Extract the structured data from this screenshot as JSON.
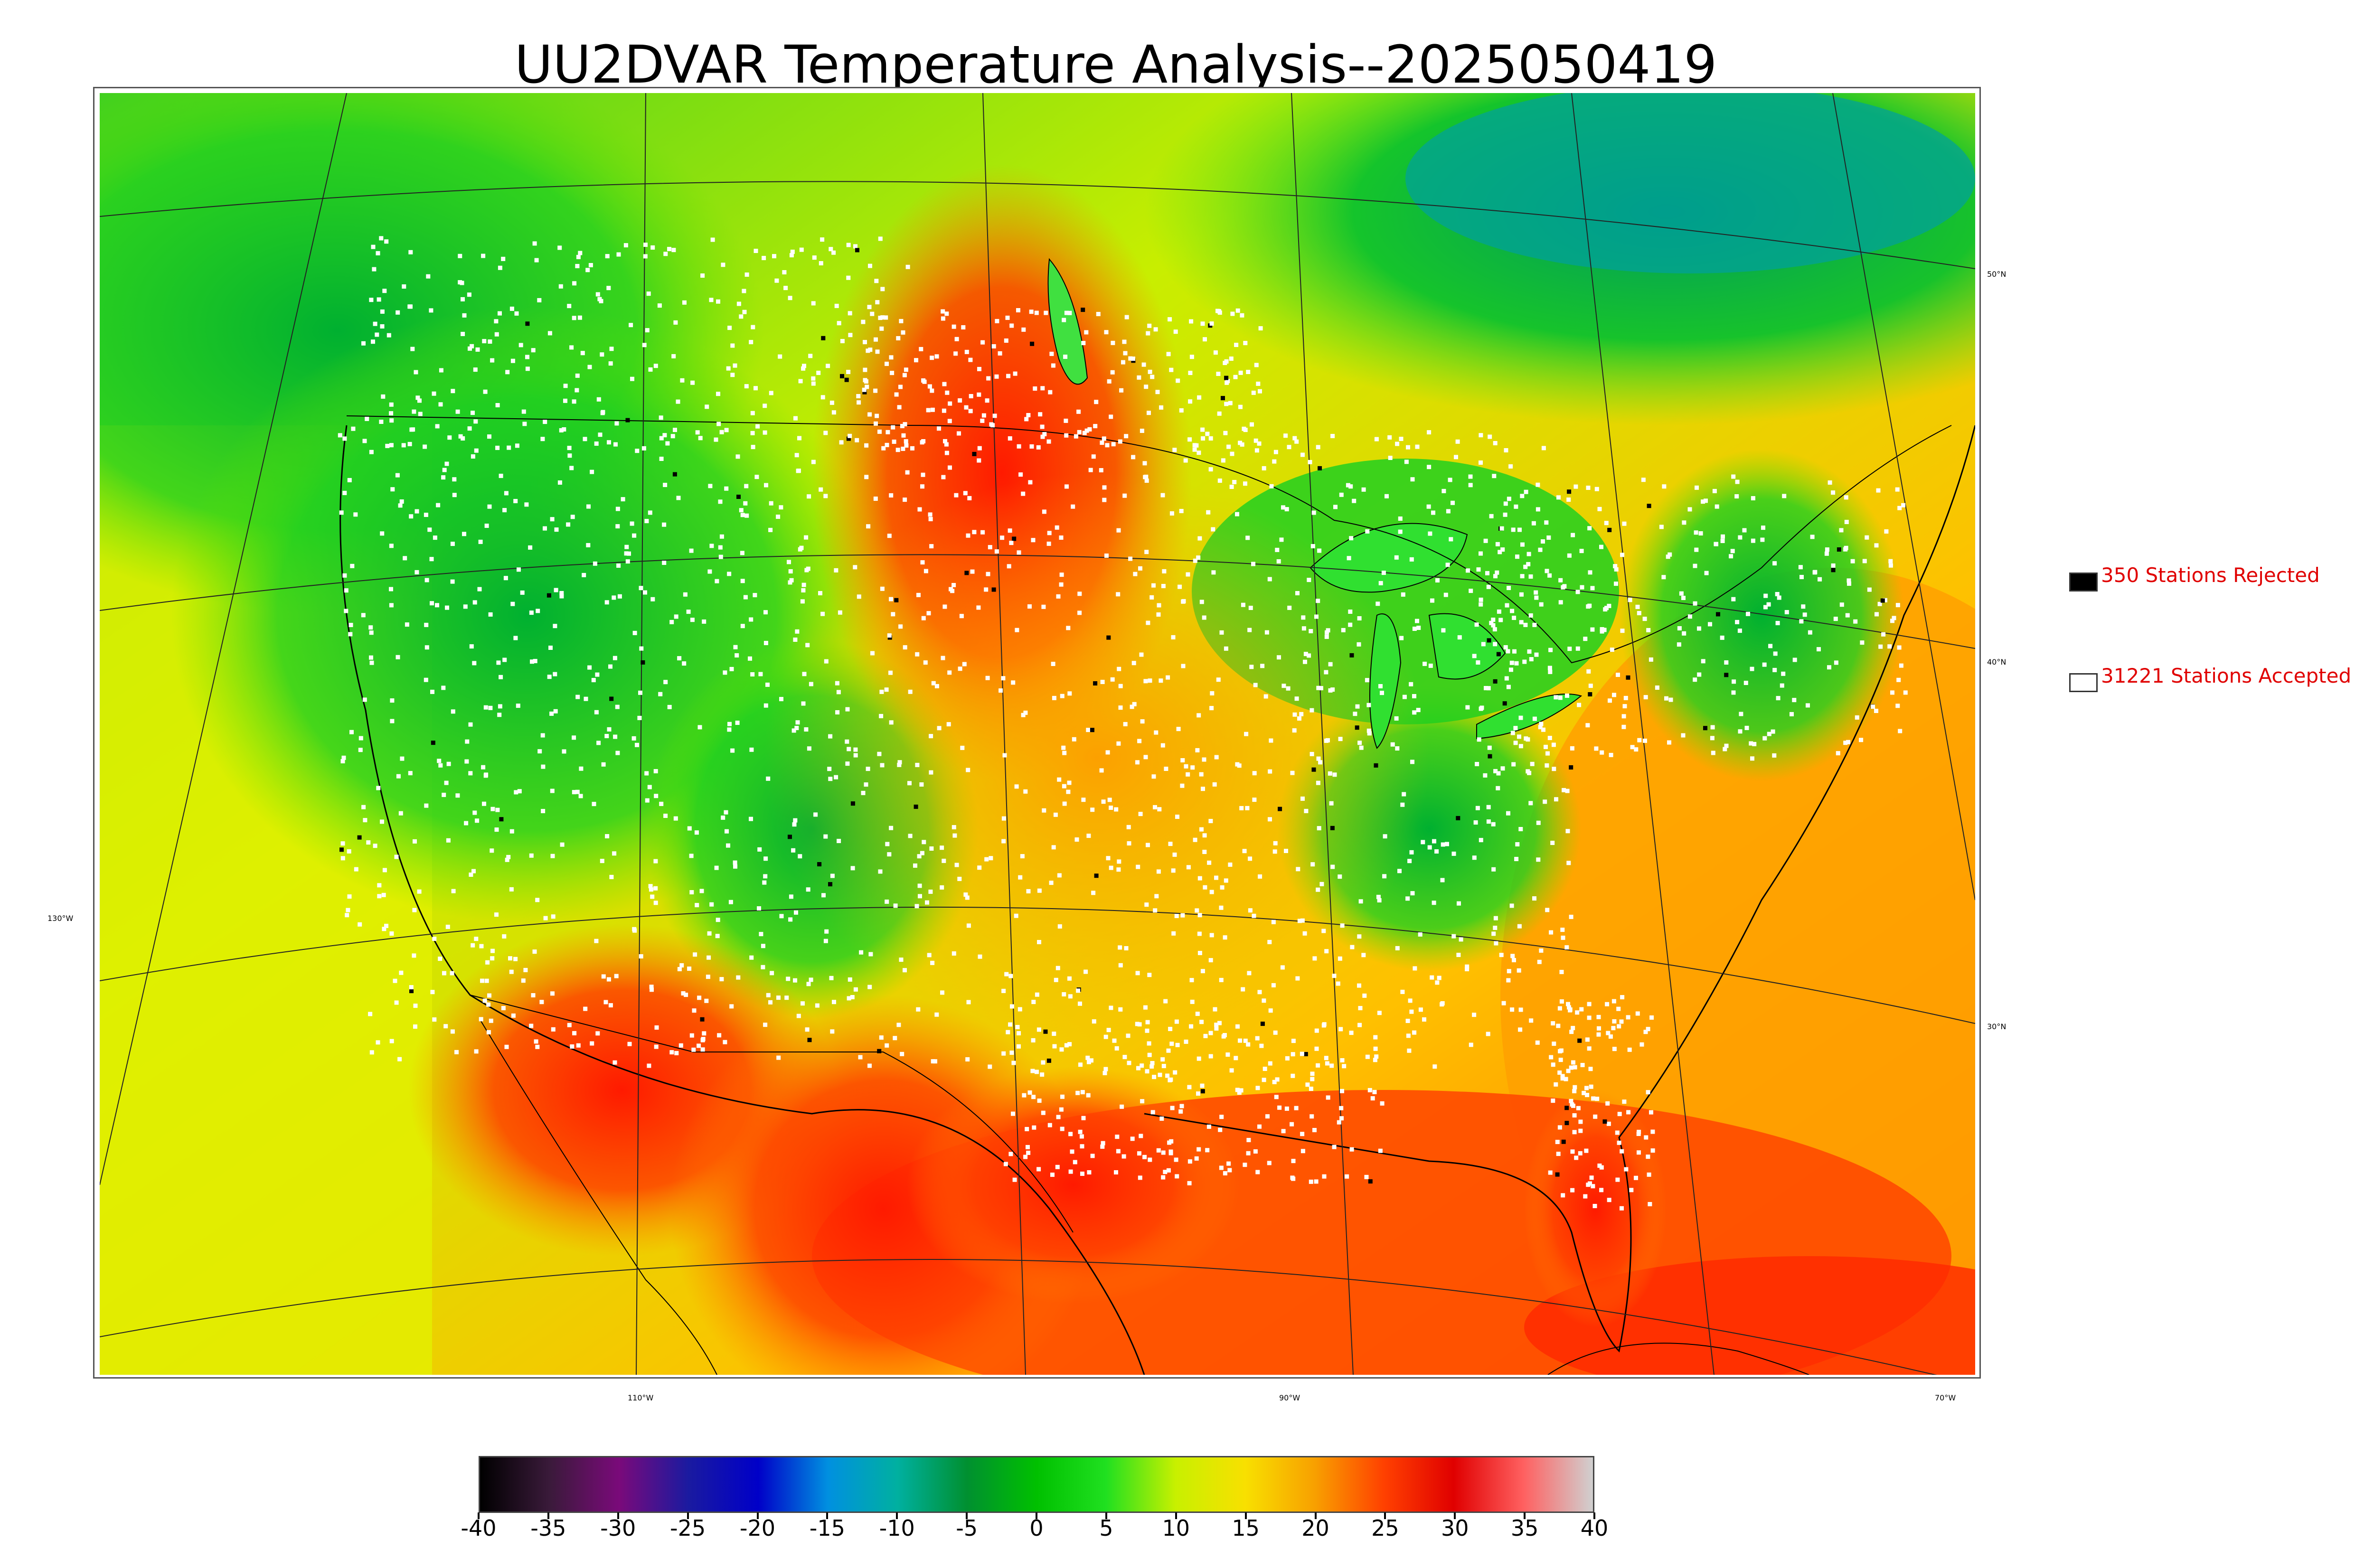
{
  "title": "UU2DVAR Temperature Analysis--2025050419",
  "longitude_labels": [
    "130°W",
    "110°W",
    "90°W",
    "70°W"
  ],
  "latitude_labels": [
    "50°N",
    "40°N",
    "30°N"
  ],
  "legend": {
    "rejected": {
      "label": "350 Stations Rejected",
      "swatch_color": "#000000"
    },
    "accepted": {
      "label": "31221 Stations Accepted",
      "swatch_color": "#ffffff"
    },
    "text_color": "#e00000"
  },
  "colorbar": {
    "tick_labels": [
      "-40",
      "-35",
      "-30",
      "-25",
      "-20",
      "-15",
      "-10",
      "-5",
      "0",
      "5",
      "10",
      "15",
      "20",
      "25",
      "30",
      "35",
      "40"
    ],
    "range": [
      -40,
      40
    ],
    "colors": [
      "#000000",
      "#3a1a3a",
      "#7a0a7a",
      "#1a1aa0",
      "#0000c8",
      "#0090e0",
      "#00b0a0",
      "#009030",
      "#00c000",
      "#20e020",
      "#c8f000",
      "#f8e000",
      "#f8a000",
      "#ff4000",
      "#e00000",
      "#ff6060",
      "#d0d0d0"
    ]
  },
  "map_colors": {
    "ocean_pacific": "#e6f000",
    "ocean_atlantic": "#ffa000",
    "gulf": "#ff5000",
    "north_canada": "#00c030",
    "hudson": "#00a0a0",
    "plains_hot": "#ff2a00",
    "midwest": "#ffb000",
    "rockies": "#20d030",
    "stations": "#ffffff"
  }
}
